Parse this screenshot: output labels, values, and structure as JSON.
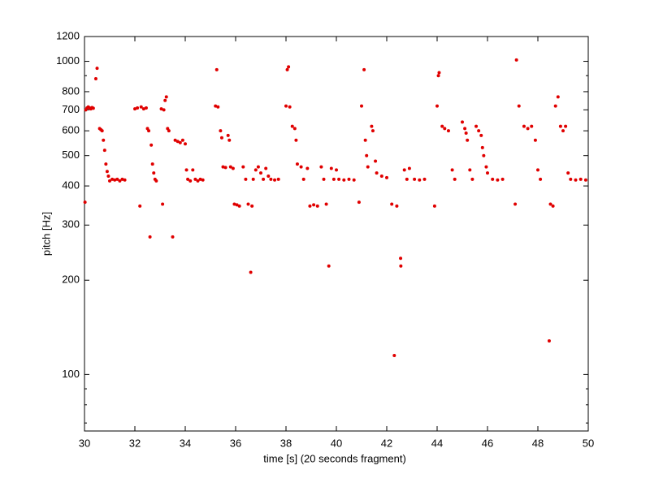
{
  "chart_data": {
    "type": "scatter",
    "x_label": "time [s] (20 seconds fragment)",
    "y_label": "pitch [Hz]",
    "log_y": true,
    "xlim": [
      30,
      50
    ],
    "xticks": [
      30,
      32,
      34,
      36,
      38,
      40,
      42,
      44,
      46,
      48,
      50
    ],
    "ylim": [
      66,
      1200
    ],
    "yticks": [
      100,
      200,
      300,
      400,
      500,
      600,
      700,
      800,
      1000,
      1200
    ],
    "yminorticks": [
      70,
      80,
      90,
      900
    ],
    "x": [
      30.02,
      30.05,
      30.1,
      30.15,
      30.2,
      30.25,
      30.3,
      30.35,
      30.45,
      30.5,
      30.6,
      30.65,
      30.7,
      30.75,
      30.8,
      30.85,
      30.9,
      30.95,
      31.0,
      31.1,
      31.2,
      31.3,
      31.4,
      31.5,
      31.6,
      32.0,
      32.1,
      32.2,
      32.25,
      32.35,
      32.45,
      32.5,
      32.55,
      32.6,
      32.65,
      32.7,
      32.75,
      32.8,
      32.85,
      33.05,
      33.1,
      33.15,
      33.2,
      33.25,
      33.3,
      33.35,
      33.5,
      33.6,
      33.7,
      33.8,
      33.9,
      34.0,
      34.05,
      34.1,
      34.2,
      34.3,
      34.4,
      34.5,
      34.6,
      34.7,
      35.2,
      35.25,
      35.3,
      35.4,
      35.45,
      35.5,
      35.6,
      35.7,
      35.75,
      35.8,
      35.9,
      35.95,
      36.05,
      36.15,
      36.3,
      36.4,
      36.5,
      36.6,
      36.65,
      36.7,
      36.8,
      36.9,
      37.0,
      37.1,
      37.2,
      37.3,
      37.4,
      37.55,
      37.7,
      38.0,
      38.05,
      38.1,
      38.15,
      38.25,
      38.35,
      38.4,
      38.45,
      38.6,
      38.7,
      38.85,
      38.95,
      39.1,
      39.25,
      39.4,
      39.5,
      39.6,
      39.7,
      39.8,
      39.9,
      40.0,
      40.1,
      40.3,
      40.5,
      40.7,
      40.9,
      41.0,
      41.1,
      41.15,
      41.2,
      41.25,
      41.4,
      41.45,
      41.55,
      41.6,
      41.8,
      42.0,
      42.2,
      42.3,
      42.4,
      42.55,
      42.56,
      42.7,
      42.8,
      42.9,
      43.1,
      43.3,
      43.5,
      43.9,
      44.0,
      44.05,
      44.08,
      44.2,
      44.3,
      44.45,
      44.6,
      44.7,
      45.0,
      45.1,
      45.15,
      45.2,
      45.3,
      45.4,
      45.55,
      45.65,
      45.75,
      45.8,
      45.85,
      45.95,
      46.0,
      46.2,
      46.4,
      46.6,
      47.1,
      47.15,
      47.25,
      47.45,
      47.6,
      47.75,
      47.9,
      48.0,
      48.1,
      48.45,
      48.5,
      48.6,
      48.7,
      48.8,
      48.9,
      49.0,
      49.1,
      49.2,
      49.3,
      49.5,
      49.7,
      49.9
    ],
    "series": [
      {
        "color": "#e00000",
        "values": [
          355,
          700,
          710,
          715,
          710,
          705,
          712,
          708,
          880,
          950,
          610,
          605,
          600,
          560,
          520,
          470,
          445,
          430,
          415,
          420,
          418,
          420,
          415,
          420,
          418,
          705,
          710,
          345,
          715,
          705,
          710,
          610,
          600,
          275,
          540,
          470,
          440,
          420,
          415,
          705,
          350,
          700,
          750,
          770,
          610,
          600,
          275,
          560,
          555,
          550,
          560,
          545,
          450,
          420,
          415,
          450,
          420,
          415,
          420,
          418,
          720,
          940,
          715,
          600,
          570,
          460,
          458,
          580,
          560,
          460,
          455,
          350,
          348,
          345,
          460,
          420,
          350,
          212,
          345,
          420,
          450,
          460,
          440,
          420,
          455,
          430,
          420,
          418,
          420,
          720,
          940,
          960,
          715,
          620,
          610,
          560,
          470,
          460,
          420,
          455,
          345,
          348,
          345,
          460,
          420,
          350,
          222,
          455,
          420,
          450,
          420,
          418,
          420,
          418,
          355,
          720,
          940,
          560,
          500,
          460,
          620,
          600,
          480,
          440,
          430,
          425,
          350,
          115,
          345,
          235,
          222,
          450,
          420,
          455,
          420,
          418,
          420,
          345,
          720,
          900,
          920,
          620,
          610,
          600,
          450,
          420,
          640,
          610,
          590,
          560,
          450,
          420,
          620,
          600,
          580,
          530,
          500,
          460,
          440,
          420,
          418,
          420,
          350,
          1010,
          720,
          620,
          610,
          620,
          560,
          450,
          420,
          128,
          350,
          345,
          720,
          770,
          620,
          600,
          620,
          440,
          420,
          418,
          420,
          418
        ]
      }
    ]
  }
}
